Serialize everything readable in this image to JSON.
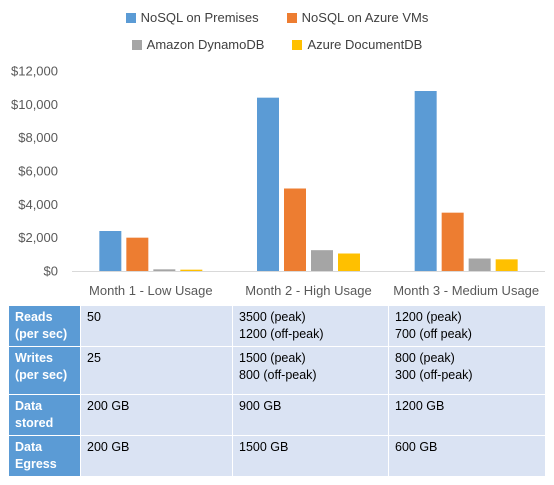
{
  "chart_data": {
    "type": "bar",
    "categories": [
      "Month 1 - Low Usage",
      "Month 2 - High Usage",
      "Month 3 - Medium Usage"
    ],
    "series": [
      {
        "name": "NoSQL on Premises",
        "color": "#5b9bd5",
        "values": [
          2400,
          10400,
          10800
        ]
      },
      {
        "name": "NoSQL on Azure VMs",
        "color": "#ed7d31",
        "values": [
          2000,
          4950,
          3500
        ]
      },
      {
        "name": "Amazon DynamoDB",
        "color": "#a5a5a5",
        "values": [
          100,
          1250,
          750
        ]
      },
      {
        "name": "Azure DocumentDB",
        "color": "#ffc000",
        "values": [
          80,
          1050,
          700
        ]
      }
    ],
    "yticks": [
      "$0",
      "$2,000",
      "$4,000",
      "$6,000",
      "$8,000",
      "$10,000",
      "$12,000"
    ],
    "ylim": [
      0,
      12000
    ],
    "legend_position": "top",
    "grid": false
  },
  "table": {
    "rows": [
      {
        "header": [
          "Reads",
          "(per sec)"
        ],
        "cells": [
          [
            "50"
          ],
          [
            "3500 (peak)",
            "1200 (off-peak)"
          ],
          [
            "1200 (peak)",
            "700 (off peak)"
          ]
        ]
      },
      {
        "header": [
          "Writes",
          "(per sec)"
        ],
        "cells": [
          [
            "25"
          ],
          [
            "1500 (peak)",
            "800 (off-peak)"
          ],
          [
            "800 (peak)",
            "300 (off-peak)"
          ]
        ]
      },
      {
        "header": [
          "Data",
          "stored"
        ],
        "cells": [
          [
            "200 GB"
          ],
          [
            "900 GB"
          ],
          [
            "1200 GB"
          ]
        ]
      },
      {
        "header": [
          "Data",
          "Egress"
        ],
        "cells": [
          [
            "200 GB"
          ],
          [
            "1500 GB"
          ],
          [
            "600 GB"
          ]
        ]
      }
    ]
  }
}
